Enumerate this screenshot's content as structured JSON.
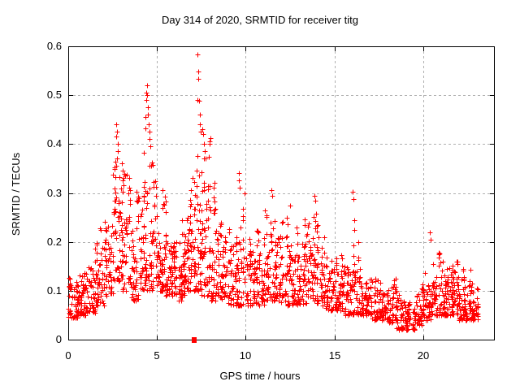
{
  "chart_data": {
    "type": "scatter",
    "title": "Day 314 of 2020, SRMTID for receiver titg",
    "xlabel": "GPS time / hours",
    "ylabel": "SRMTID / TECUs",
    "xlim": [
      0,
      24
    ],
    "ylim": [
      0,
      0.6
    ],
    "xticks": [
      0,
      5,
      10,
      15,
      20
    ],
    "xtick_labels": [
      "0",
      "5",
      "10",
      "15",
      "20"
    ],
    "yticks": [
      0,
      0.1,
      0.2,
      0.3,
      0.4,
      0.5,
      0.6
    ],
    "ytick_labels": [
      "0",
      "0.1",
      "0.2",
      "0.3",
      "0.4",
      "0.5",
      "0.6"
    ],
    "grid": true,
    "legend": "none",
    "marker": {
      "shape": "plus",
      "color": "#ff0000",
      "size": 7
    },
    "axis_color": "#000000",
    "grid_color": "#b0b0b0",
    "background": "#ffffff",
    "data_x_end": 23.1,
    "seed": 12345,
    "series": [
      {
        "name": "SRMTID",
        "note": "dense scatter of ~2200 points; envelope_bins give [x_start, x_end, y_min, y_max, n_points] estimated from the plot",
        "envelope_bins": [
          [
            0,
            0.5,
            0.045,
            0.155,
            50
          ],
          [
            0.5,
            1,
            0.05,
            0.15,
            45
          ],
          [
            1,
            1.5,
            0.055,
            0.16,
            45
          ],
          [
            1.5,
            2,
            0.07,
            0.25,
            45
          ],
          [
            2,
            2.5,
            0.09,
            0.28,
            45
          ],
          [
            2.5,
            3,
            0.12,
            0.42,
            55
          ],
          [
            3,
            3.5,
            0.1,
            0.36,
            50
          ],
          [
            3.5,
            4,
            0.08,
            0.31,
            45
          ],
          [
            4,
            4.5,
            0.1,
            0.46,
            55
          ],
          [
            4.5,
            5,
            0.1,
            0.42,
            50
          ],
          [
            5,
            5.5,
            0.1,
            0.31,
            50
          ],
          [
            5.5,
            6,
            0.09,
            0.29,
            50
          ],
          [
            6,
            6.5,
            0.08,
            0.3,
            50
          ],
          [
            6.5,
            7,
            0.1,
            0.31,
            55
          ],
          [
            7,
            7.5,
            0.1,
            0.47,
            60
          ],
          [
            7.5,
            8,
            0.09,
            0.42,
            55
          ],
          [
            8,
            8.5,
            0.08,
            0.33,
            50
          ],
          [
            8.5,
            9,
            0.08,
            0.28,
            45
          ],
          [
            9,
            9.5,
            0.07,
            0.26,
            45
          ],
          [
            9.5,
            10,
            0.07,
            0.3,
            45
          ],
          [
            10,
            10.5,
            0.07,
            0.26,
            45
          ],
          [
            10.5,
            11,
            0.07,
            0.23,
            45
          ],
          [
            11,
            11.5,
            0.08,
            0.29,
            45
          ],
          [
            11.5,
            12,
            0.08,
            0.28,
            45
          ],
          [
            12,
            12.5,
            0.07,
            0.27,
            45
          ],
          [
            12.5,
            13,
            0.07,
            0.25,
            45
          ],
          [
            13,
            13.5,
            0.07,
            0.26,
            45
          ],
          [
            13.5,
            14,
            0.08,
            0.29,
            50
          ],
          [
            14,
            14.5,
            0.07,
            0.26,
            45
          ],
          [
            14.5,
            15,
            0.06,
            0.21,
            45
          ],
          [
            15,
            15.5,
            0.06,
            0.19,
            45
          ],
          [
            15.5,
            16,
            0.05,
            0.17,
            45
          ],
          [
            16,
            16.5,
            0.05,
            0.22,
            40
          ],
          [
            16.5,
            17,
            0.05,
            0.16,
            40
          ],
          [
            17,
            17.5,
            0.04,
            0.18,
            40
          ],
          [
            17.5,
            18,
            0.04,
            0.14,
            40
          ],
          [
            18,
            18.5,
            0.035,
            0.13,
            40
          ],
          [
            18.5,
            19,
            0.02,
            0.1,
            40
          ],
          [
            19,
            19.5,
            0.02,
            0.085,
            40
          ],
          [
            19.5,
            20,
            0.03,
            0.11,
            40
          ],
          [
            20,
            20.5,
            0.04,
            0.16,
            45
          ],
          [
            20.5,
            21,
            0.05,
            0.18,
            45
          ],
          [
            21,
            21.5,
            0.05,
            0.17,
            50
          ],
          [
            21.5,
            22,
            0.05,
            0.17,
            50
          ],
          [
            22,
            22.5,
            0.04,
            0.16,
            50
          ],
          [
            22.5,
            23.1,
            0.04,
            0.15,
            55
          ]
        ],
        "outlier_points": [
          [
            2.68,
            0.415
          ],
          [
            2.72,
            0.44
          ],
          [
            2.75,
            0.425
          ],
          [
            2.78,
            0.4
          ],
          [
            2.8,
            0.385
          ],
          [
            2.74,
            0.37
          ],
          [
            2.7,
            0.355
          ],
          [
            3.02,
            0.36
          ],
          [
            3.06,
            0.345
          ],
          [
            3.1,
            0.33
          ],
          [
            3.45,
            0.33
          ],
          [
            4.35,
            0.455
          ],
          [
            4.38,
            0.49
          ],
          [
            4.4,
            0.505
          ],
          [
            4.42,
            0.52
          ],
          [
            4.45,
            0.5
          ],
          [
            4.47,
            0.475
          ],
          [
            4.5,
            0.46
          ],
          [
            4.55,
            0.44
          ],
          [
            4.58,
            0.425
          ],
          [
            4.6,
            0.41
          ],
          [
            4.62,
            0.395
          ],
          [
            5.3,
            0.305
          ],
          [
            6.9,
            0.305
          ],
          [
            7.26,
            0.49
          ],
          [
            7.3,
            0.583
          ],
          [
            7.32,
            0.548
          ],
          [
            7.34,
            0.533
          ],
          [
            7.36,
            0.488
          ],
          [
            7.4,
            0.46
          ],
          [
            7.44,
            0.44
          ],
          [
            7.48,
            0.425
          ],
          [
            7.55,
            0.43
          ],
          [
            7.6,
            0.42
          ],
          [
            7.64,
            0.4
          ],
          [
            7.68,
            0.385
          ],
          [
            7.72,
            0.37
          ],
          [
            8.25,
            0.32
          ],
          [
            9.6,
            0.34
          ],
          [
            9.64,
            0.325
          ],
          [
            9.68,
            0.31
          ],
          [
            9.95,
            0.3
          ],
          [
            11.44,
            0.305
          ],
          [
            11.48,
            0.295
          ],
          [
            12.5,
            0.275
          ],
          [
            13.88,
            0.295
          ],
          [
            13.92,
            0.285
          ],
          [
            16.04,
            0.303
          ],
          [
            16.07,
            0.287
          ],
          [
            16.1,
            0.245
          ],
          [
            16.13,
            0.225
          ],
          [
            20.4,
            0.22
          ],
          [
            20.45,
            0.205
          ]
        ]
      }
    ],
    "extra_points": [
      {
        "shape": "square",
        "color": "#ff0000",
        "x": 7.08,
        "y": 0.0
      }
    ]
  }
}
